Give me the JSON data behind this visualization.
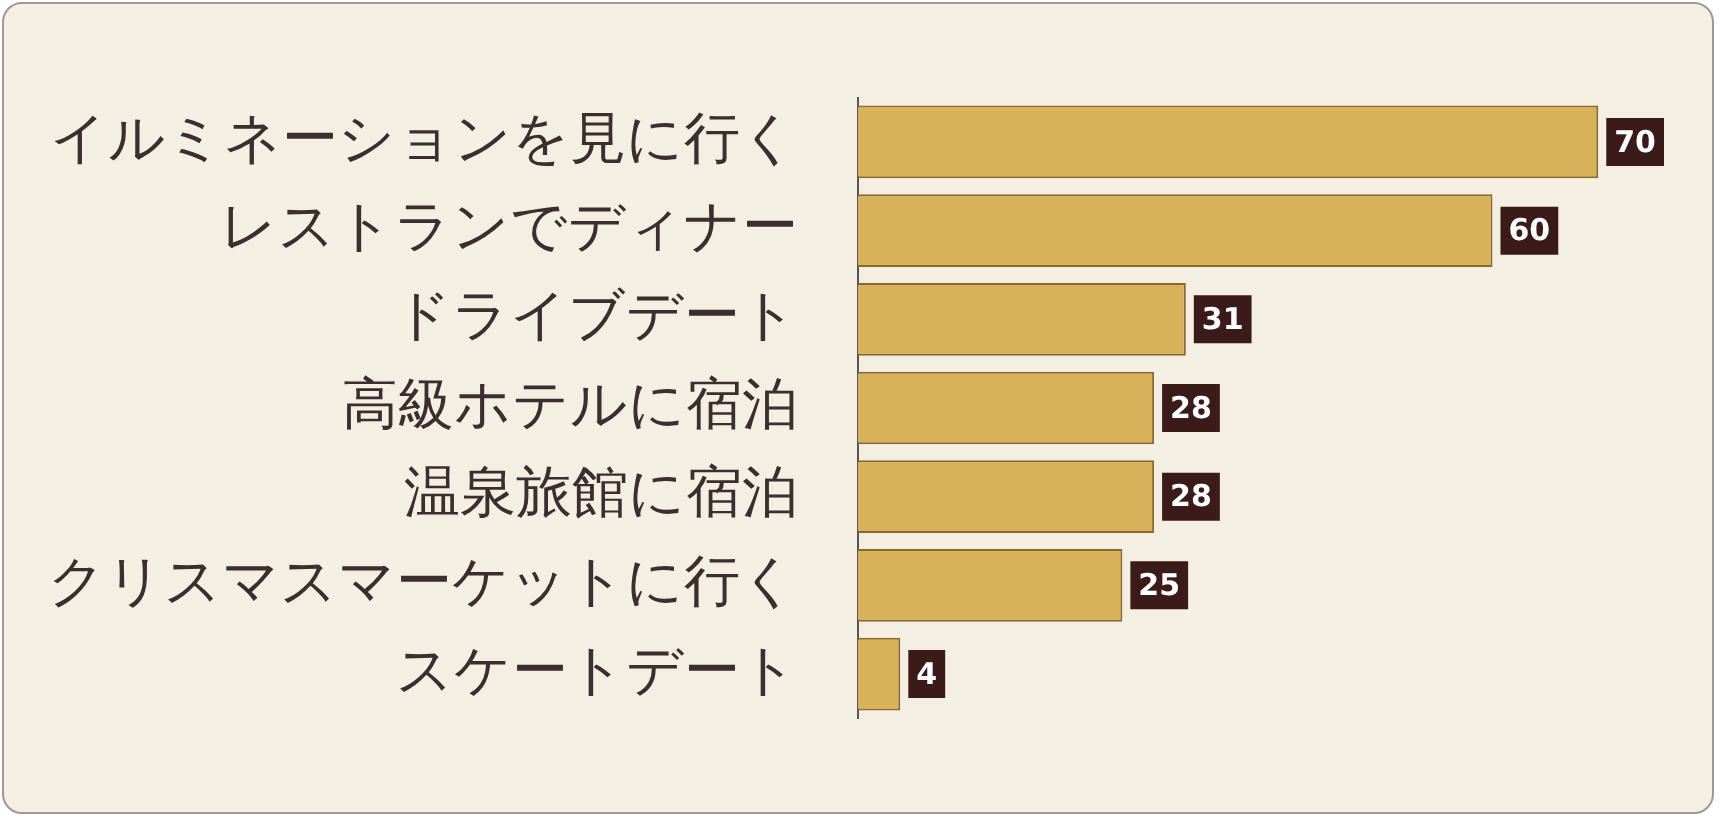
{
  "chart_data": {
    "type": "bar",
    "orientation": "horizontal",
    "categories": [
      "イルミネーションを見に行く",
      "レストランでディナー",
      "ドライブデート",
      "高級ホテルに宿泊",
      "温泉旅館に宿泊",
      "クリスマスマーケットに行く",
      "スケートデート"
    ],
    "values": [
      70,
      60,
      31,
      28,
      28,
      25,
      4
    ],
    "color": "#d8b25a",
    "data_labels": true,
    "grid": false,
    "legend": false
  }
}
